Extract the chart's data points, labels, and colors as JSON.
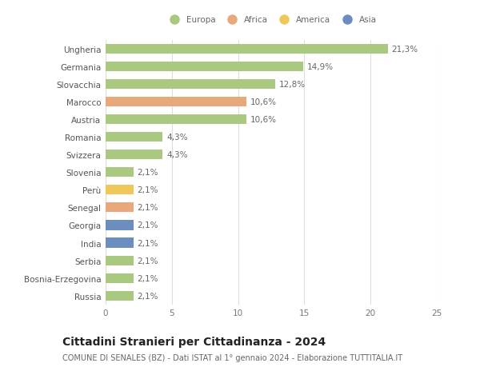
{
  "countries": [
    "Ungheria",
    "Germania",
    "Slovacchia",
    "Marocco",
    "Austria",
    "Romania",
    "Svizzera",
    "Slovenia",
    "Perù",
    "Senegal",
    "Georgia",
    "India",
    "Serbia",
    "Bosnia-Erzegovina",
    "Russia"
  ],
  "values": [
    21.3,
    14.9,
    12.8,
    10.6,
    10.6,
    4.3,
    4.3,
    2.1,
    2.1,
    2.1,
    2.1,
    2.1,
    2.1,
    2.1,
    2.1
  ],
  "labels": [
    "21,3%",
    "14,9%",
    "12,8%",
    "10,6%",
    "10,6%",
    "4,3%",
    "4,3%",
    "2,1%",
    "2,1%",
    "2,1%",
    "2,1%",
    "2,1%",
    "2,1%",
    "2,1%",
    "2,1%"
  ],
  "continents": [
    "Europa",
    "Europa",
    "Europa",
    "Africa",
    "Europa",
    "Europa",
    "Europa",
    "Europa",
    "America",
    "Africa",
    "Asia",
    "Asia",
    "Europa",
    "Europa",
    "Europa"
  ],
  "continent_colors": {
    "Europa": "#a8c97f",
    "Africa": "#e8a87c",
    "America": "#f0c85a",
    "Asia": "#6b8ebf"
  },
  "legend_order": [
    "Europa",
    "Africa",
    "America",
    "Asia"
  ],
  "legend_colors": [
    "#a8c97f",
    "#e8a87c",
    "#f0c85a",
    "#6b8ebf"
  ],
  "title": "Cittadini Stranieri per Cittadinanza - 2024",
  "subtitle": "COMUNE DI SENALES (BZ) - Dati ISTAT al 1° gennaio 2024 - Elaborazione TUTTITALIA.IT",
  "xlim": [
    0,
    25
  ],
  "xticks": [
    0,
    5,
    10,
    15,
    20,
    25
  ],
  "background_color": "#ffffff",
  "grid_color": "#dddddd",
  "bar_height": 0.55,
  "label_fontsize": 7.5,
  "tick_fontsize": 7.5,
  "title_fontsize": 10,
  "subtitle_fontsize": 7
}
